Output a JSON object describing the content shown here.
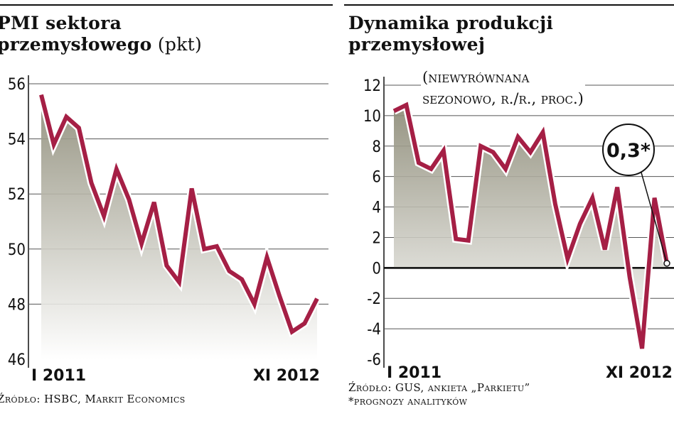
{
  "charts": {
    "left": {
      "title": "PMI sektora\nprzemysłowego",
      "unit": " (pkt)",
      "source": "Źródło: HSBC, Markit Economics"
    },
    "right": {
      "title": "Dynamika produkcji\nprzemysłowej",
      "note": "(niewyrównana\nsezonowo, r./r., proc.)",
      "callout": "0,3*",
      "source_line1": "Źródło: GUS, ankieta „Parkietu”",
      "source_line2": "*prognozy analityków"
    }
  },
  "colors": {
    "line": "#a51f45",
    "grid": "#555555",
    "area_top": "#8a8874",
    "area_bottom": "#ffffff"
  },
  "chart_data": [
    {
      "type": "area",
      "title": "PMI sektora przemysłowego (pkt)",
      "xlabel": "",
      "ylabel": "",
      "ylim": [
        46,
        56
      ],
      "yticks": [
        "56",
        "54",
        "52",
        "50",
        "48",
        "46"
      ],
      "xtick_labels": [
        "I 2011",
        "XI 2012"
      ],
      "series": [
        {
          "values": [
            55.6,
            53.8,
            54.8,
            54.4,
            52.4,
            51.2,
            52.9,
            51.8,
            50.2,
            51.7,
            49.4,
            48.8,
            52.2,
            50.0,
            50.1,
            49.2,
            48.9,
            48.0,
            49.7,
            48.3,
            47.0,
            47.3,
            48.2
          ]
        }
      ]
    },
    {
      "type": "area",
      "title": "Dynamika produkcji przemysłowej",
      "subtitle": "(niewyrównana sezonowo, r./r., proc.)",
      "xlabel": "",
      "ylabel": "",
      "ylim": [
        -6,
        12
      ],
      "yticks": [
        "12",
        "10",
        "8",
        "6",
        "4",
        "2",
        "0",
        "-2",
        "-4",
        "-6"
      ],
      "xtick_labels": [
        "I 2011",
        "XI 2012"
      ],
      "annotation": "0,3*",
      "series": [
        {
          "values": [
            10.3,
            10.7,
            6.9,
            6.5,
            7.7,
            1.9,
            1.8,
            8.0,
            7.6,
            6.5,
            8.6,
            7.6,
            8.9,
            4.2,
            0.6,
            2.9,
            4.6,
            1.2,
            5.3,
            -0.6,
            -5.3,
            4.6,
            0.3
          ]
        }
      ]
    }
  ]
}
